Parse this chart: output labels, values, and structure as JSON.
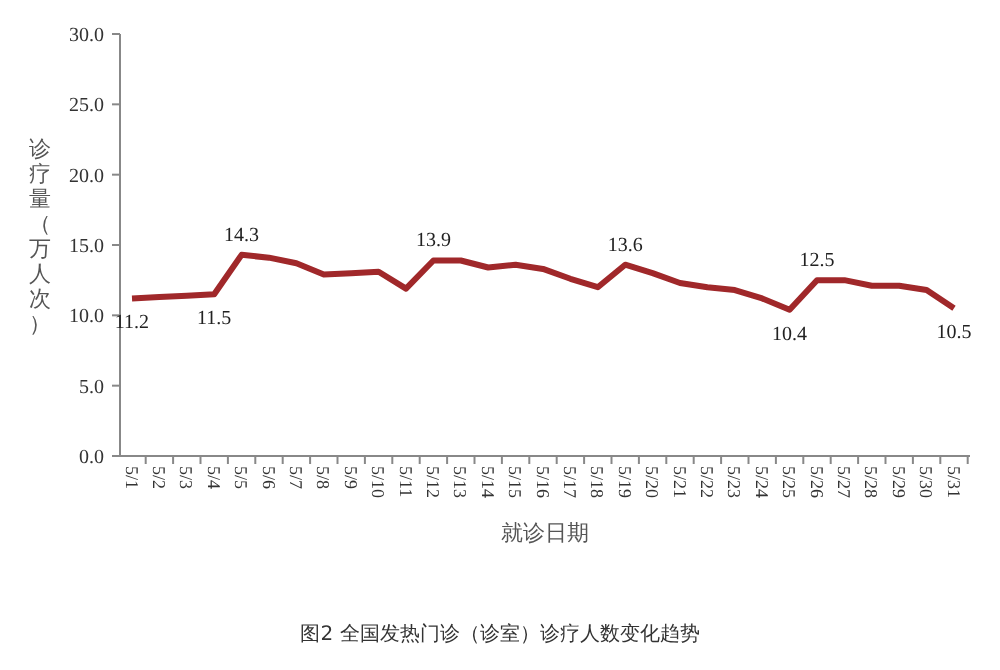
{
  "chart_data": {
    "type": "line",
    "title": "图2 全国发热门诊（诊室）诊疗人数变化趋势",
    "xlabel": "就诊日期",
    "ylabel": "诊疗量（万人次）",
    "categories": [
      "5/1",
      "5/2",
      "5/3",
      "5/4",
      "5/5",
      "5/6",
      "5/7",
      "5/8",
      "5/9",
      "5/10",
      "5/11",
      "5/12",
      "5/13",
      "5/14",
      "5/15",
      "5/16",
      "5/17",
      "5/18",
      "5/19",
      "5/20",
      "5/21",
      "5/22",
      "5/23",
      "5/24",
      "5/25",
      "5/26",
      "5/27",
      "5/28",
      "5/29",
      "5/30",
      "5/31"
    ],
    "series": [
      {
        "color": "#a0282a",
        "values": [
          11.2,
          11.3,
          11.4,
          11.5,
          14.3,
          14.1,
          13.7,
          12.9,
          13.0,
          13.1,
          11.9,
          13.9,
          13.9,
          13.4,
          13.6,
          13.3,
          12.6,
          12.0,
          13.6,
          13.0,
          12.3,
          12.0,
          11.8,
          11.2,
          10.4,
          12.5,
          12.5,
          12.1,
          12.1,
          11.8,
          10.5
        ],
        "value_labels": [
          "11.2",
          null,
          null,
          "11.5",
          "14.3",
          null,
          null,
          null,
          null,
          null,
          null,
          "13.9",
          null,
          null,
          null,
          null,
          null,
          null,
          "13.6",
          null,
          null,
          null,
          null,
          null,
          "10.4",
          "12.5",
          null,
          null,
          null,
          null,
          "10.5"
        ]
      }
    ],
    "ylim": [
      0,
      30
    ],
    "yticks": [
      {
        "value": 0,
        "label": "0.0"
      },
      {
        "value": 5,
        "label": "5.0"
      },
      {
        "value": 10,
        "label": "10.0"
      },
      {
        "value": 15,
        "label": "15.0"
      },
      {
        "value": 20,
        "label": "20.0"
      },
      {
        "value": 25,
        "label": "25.0"
      },
      {
        "value": 30,
        "label": "30.0"
      }
    ],
    "grid": false,
    "marker": "none",
    "line_style": "solid"
  }
}
